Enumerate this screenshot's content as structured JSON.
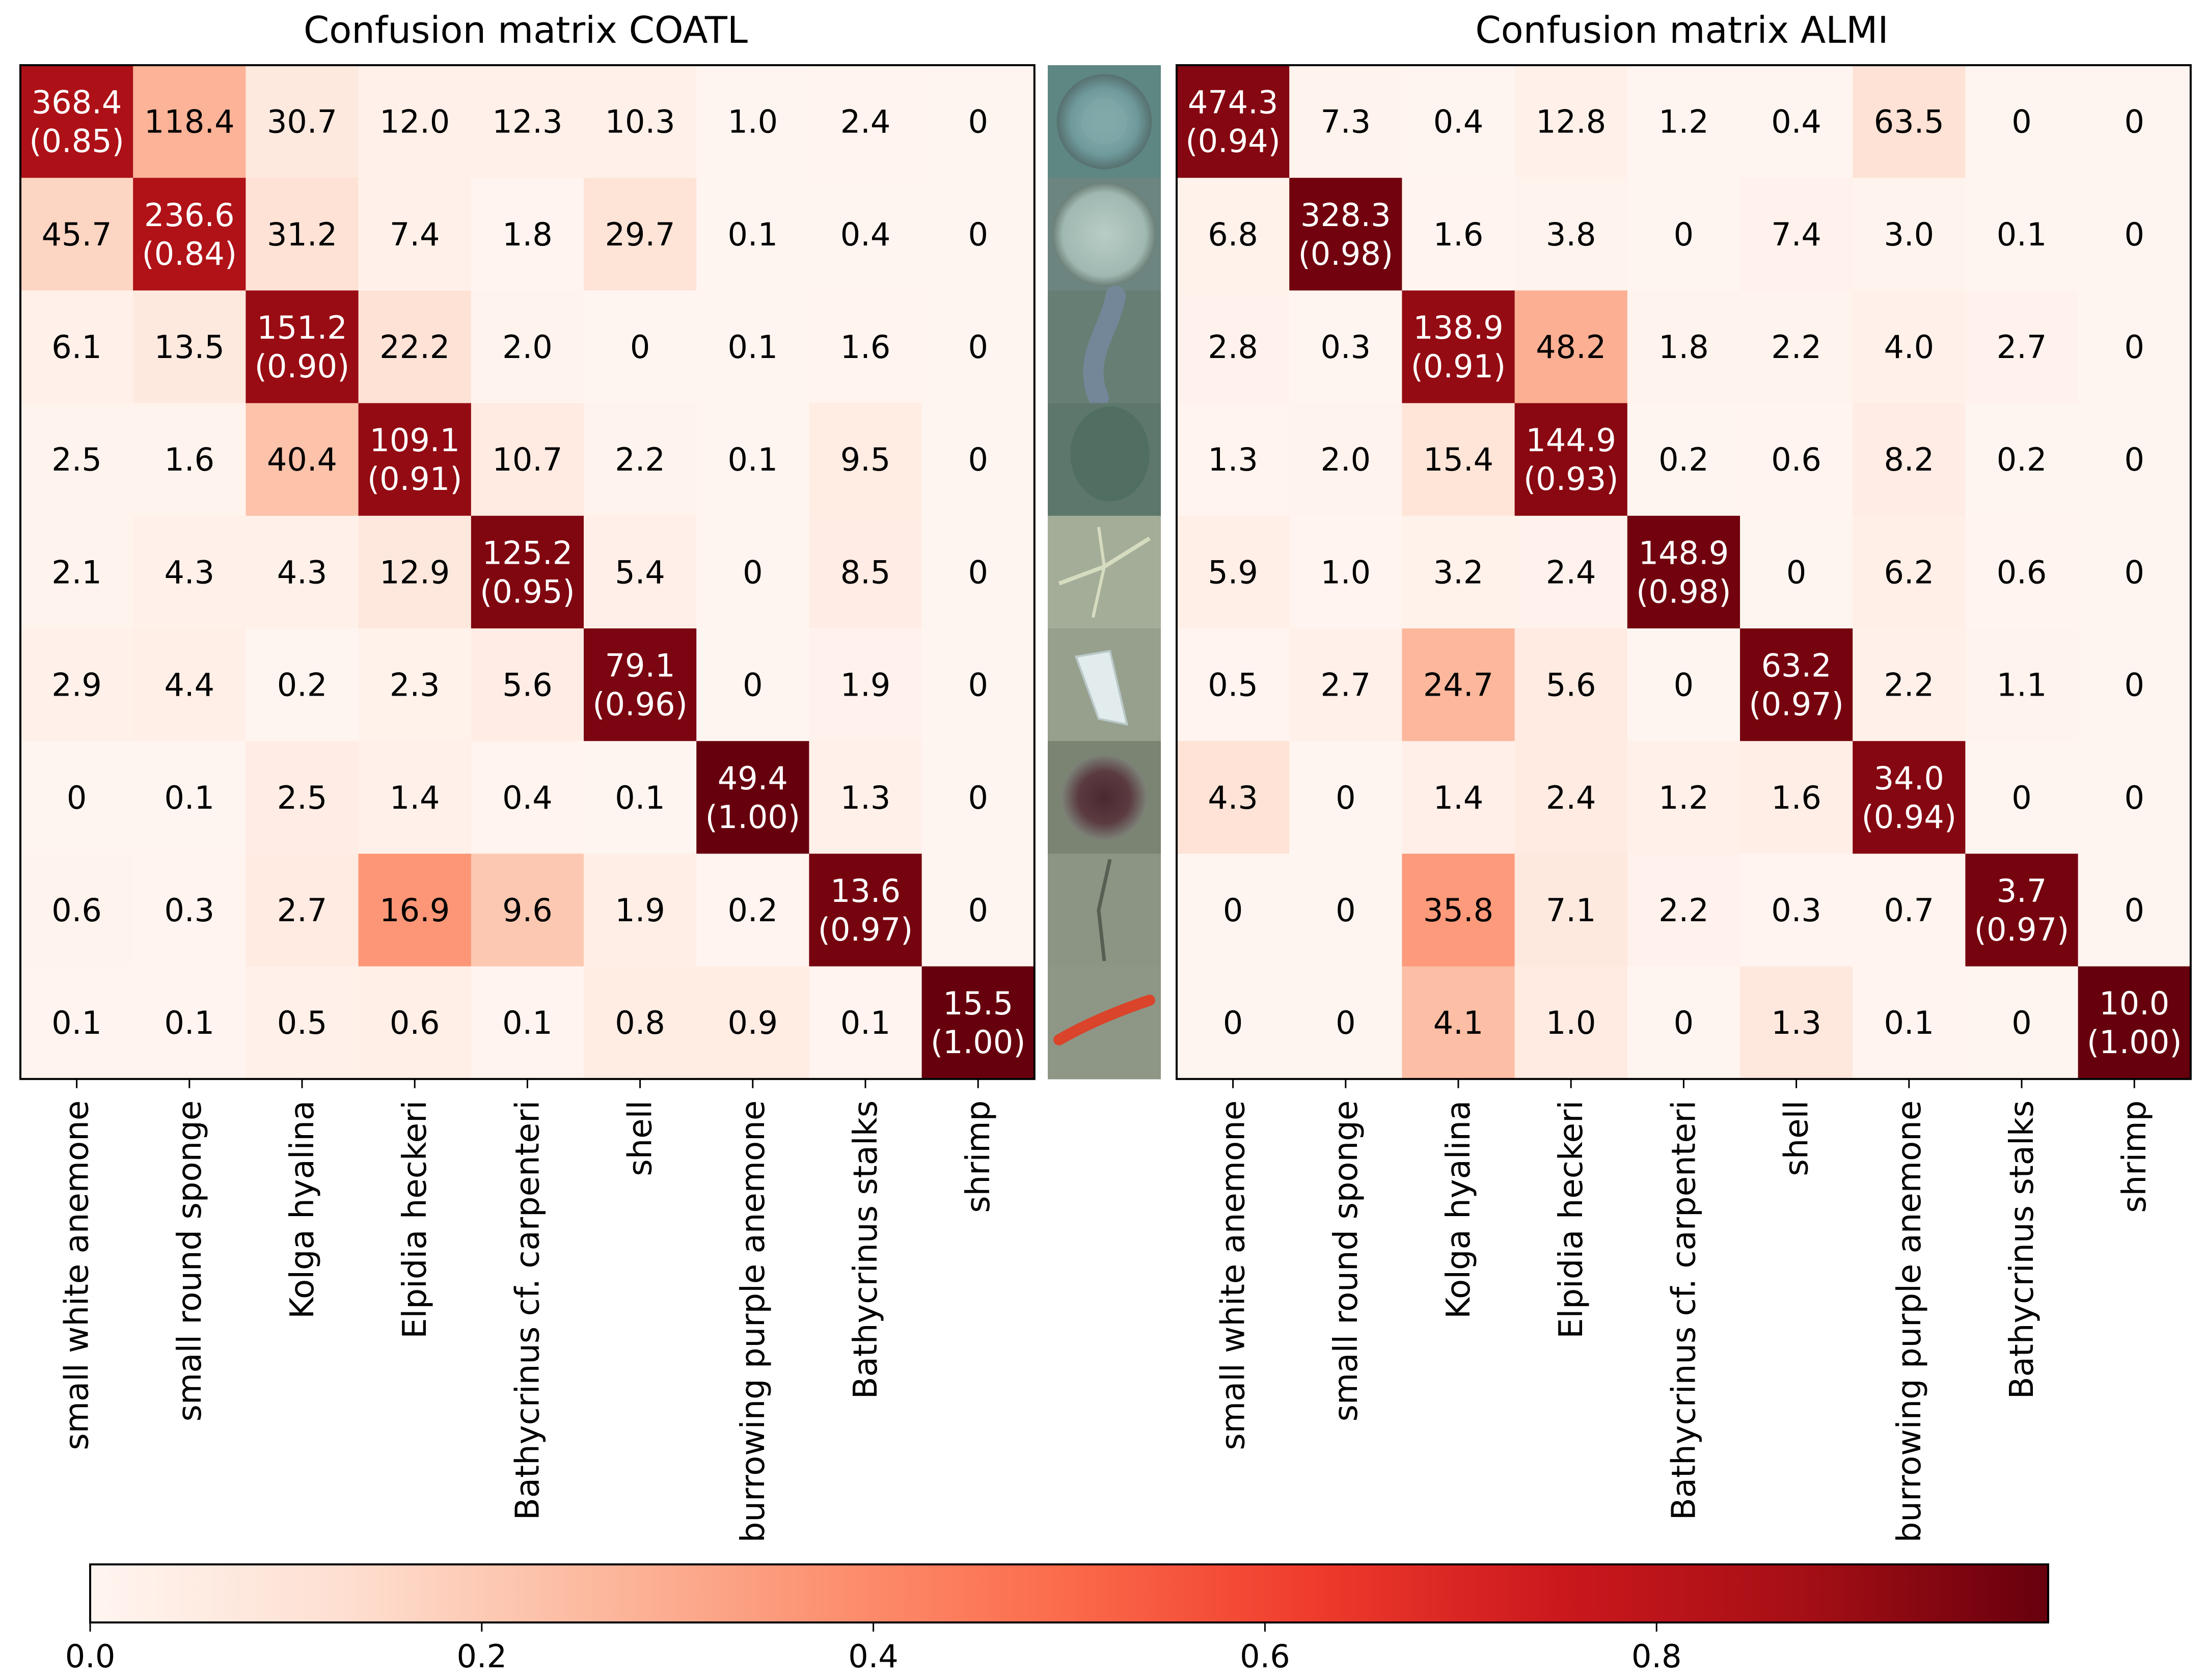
{
  "chart_data": [
    {
      "type": "heatmap",
      "title": "Confusion matrix COATL",
      "categories": [
        "small white anemone",
        "small round sponge",
        "Kolga hyalina",
        "Elpidia heckeri",
        "Bathycrinus cf. carpenteri",
        "shell",
        "burrowing purple anemone",
        "Bathycrinus stalks",
        "shrimp"
      ],
      "cells": [
        [
          "368.4\n(0.85)",
          "118.4",
          "30.7",
          "12.0",
          "12.3",
          "10.3",
          "1.0",
          "2.4",
          "0"
        ],
        [
          "45.7",
          "236.6\n(0.84)",
          "31.2",
          "7.4",
          "1.8",
          "29.7",
          "0.1",
          "0.4",
          "0"
        ],
        [
          "6.1",
          "13.5",
          "151.2\n(0.90)",
          "22.2",
          "2.0",
          "0",
          "0.1",
          "1.6",
          "0"
        ],
        [
          "2.5",
          "1.6",
          "40.4",
          "109.1\n(0.91)",
          "10.7",
          "2.2",
          "0.1",
          "9.5",
          "0"
        ],
        [
          "2.1",
          "4.3",
          "4.3",
          "12.9",
          "125.2\n(0.95)",
          "5.4",
          "0",
          "8.5",
          "0"
        ],
        [
          "2.9",
          "4.4",
          "0.2",
          "2.3",
          "5.6",
          "79.1\n(0.96)",
          "0",
          "1.9",
          "0"
        ],
        [
          "0",
          "0.1",
          "2.5",
          "1.4",
          "0.4",
          "0.1",
          "49.4\n(1.00)",
          "1.3",
          "0"
        ],
        [
          "0.6",
          "0.3",
          "2.7",
          "16.9",
          "9.6",
          "1.9",
          "0.2",
          "13.6\n(0.97)",
          "0"
        ],
        [
          "0.1",
          "0.1",
          "0.5",
          "0.6",
          "0.1",
          "0.8",
          "0.9",
          "0.1",
          "15.5\n(1.00)"
        ]
      ],
      "color_values": [
        [
          0.85,
          0.274,
          0.071,
          0.028,
          0.028,
          0.024,
          0.002,
          0.006,
          0
        ],
        [
          0.162,
          0.84,
          0.111,
          0.026,
          0.006,
          0.106,
          0.0,
          0.001,
          0
        ],
        [
          0.031,
          0.069,
          0.9,
          0.113,
          0.01,
          0,
          0.001,
          0.008,
          0
        ],
        [
          0.014,
          0.009,
          0.226,
          0.91,
          0.06,
          0.012,
          0.001,
          0.053,
          0
        ],
        [
          0.013,
          0.026,
          0.026,
          0.079,
          0.95,
          0.033,
          0,
          0.052,
          0
        ],
        [
          0.024,
          0.036,
          0.002,
          0.019,
          0.046,
          0.96,
          0,
          0.016,
          0
        ],
        [
          0,
          0.002,
          0.045,
          0.025,
          0.007,
          0.002,
          1.0,
          0.023,
          0
        ],
        [
          0.013,
          0.006,
          0.058,
          0.364,
          0.207,
          0.041,
          0.004,
          0.97,
          0
        ],
        [
          0.006,
          0.006,
          0.03,
          0.036,
          0.006,
          0.048,
          0.054,
          0.006,
          1.0
        ]
      ]
    },
    {
      "type": "heatmap",
      "title": "Confusion matrix ALMI",
      "categories": [
        "small white anemone",
        "small round sponge",
        "Kolga hyalina",
        "Elpidia heckeri",
        "Bathycrinus cf. carpenteri",
        "shell",
        "burrowing purple anemone",
        "Bathycrinus stalks",
        "shrimp"
      ],
      "cells": [
        [
          "474.3\n(0.94)",
          "7.3",
          "0.4",
          "12.8",
          "1.2",
          "0.4",
          "63.5",
          "0",
          "0"
        ],
        [
          "6.8",
          "328.3\n(0.98)",
          "1.6",
          "3.8",
          "0",
          "7.4",
          "3.0",
          "0.1",
          "0"
        ],
        [
          "2.8",
          "0.3",
          "138.9\n(0.91)",
          "48.2",
          "1.8",
          "2.2",
          "4.0",
          "2.7",
          "0"
        ],
        [
          "1.3",
          "2.0",
          "15.4",
          "144.9\n(0.93)",
          "0.2",
          "0.6",
          "8.2",
          "0.2",
          "0"
        ],
        [
          "5.9",
          "1.0",
          "3.2",
          "2.4",
          "148.9\n(0.98)",
          "0",
          "6.2",
          "0.6",
          "0"
        ],
        [
          "0.5",
          "2.7",
          "24.7",
          "5.6",
          "0",
          "63.2\n(0.97)",
          "2.2",
          "1.1",
          "0"
        ],
        [
          "4.3",
          "0",
          "1.4",
          "2.4",
          "1.2",
          "1.6",
          "34.0\n(0.94)",
          "0",
          "0"
        ],
        [
          "0",
          "0",
          "35.8",
          "7.1",
          "2.2",
          "0.3",
          "0.7",
          "3.7\n(0.97)",
          "0"
        ],
        [
          "0",
          "0",
          "4.1",
          "1.0",
          "0",
          "1.3",
          "0.1",
          "0",
          "10.0\n(1.00)"
        ]
      ],
      "color_values": [
        [
          0.94,
          0.013,
          0.001,
          0.024,
          0.002,
          0.001,
          0.114,
          0,
          0
        ],
        [
          0.02,
          0.98,
          0.005,
          0.011,
          0,
          0.022,
          0.009,
          0.0,
          0
        ],
        [
          0.018,
          0.002,
          0.91,
          0.288,
          0.012,
          0.014,
          0.026,
          0.018,
          0
        ],
        [
          0.008,
          0.013,
          0.098,
          0.93,
          0.001,
          0.004,
          0.052,
          0.001,
          0
        ],
        [
          0.036,
          0.006,
          0.019,
          0.015,
          0.98,
          0,
          0.038,
          0.004,
          0
        ],
        [
          0.006,
          0.029,
          0.262,
          0.059,
          0,
          0.97,
          0.023,
          0.012,
          0
        ],
        [
          0.109,
          0,
          0.035,
          0.061,
          0.03,
          0.041,
          0.94,
          0,
          0
        ],
        [
          0,
          0,
          0.35,
          0.069,
          0.022,
          0.003,
          0.007,
          0.97,
          0
        ],
        [
          0,
          0,
          0.24,
          0.059,
          0,
          0.077,
          0.006,
          0,
          1.0
        ]
      ]
    }
  ],
  "colorbar": {
    "colormap": "Reds",
    "min": 0,
    "max": 1,
    "ticks": [
      "0.0",
      "0.2",
      "0.4",
      "0.6",
      "0.8"
    ]
  },
  "example_images": [
    "small white anemone",
    "small round sponge",
    "Kolga hyalina",
    "Elpidia heckeri",
    "Bathycrinus cf. carpenteri",
    "shell",
    "burrowing purple anemone",
    "Bathycrinus stalks",
    "shrimp"
  ],
  "colors": {
    "text_dark": "#000000",
    "text_light": "#ffffff",
    "frame": "#000000"
  }
}
